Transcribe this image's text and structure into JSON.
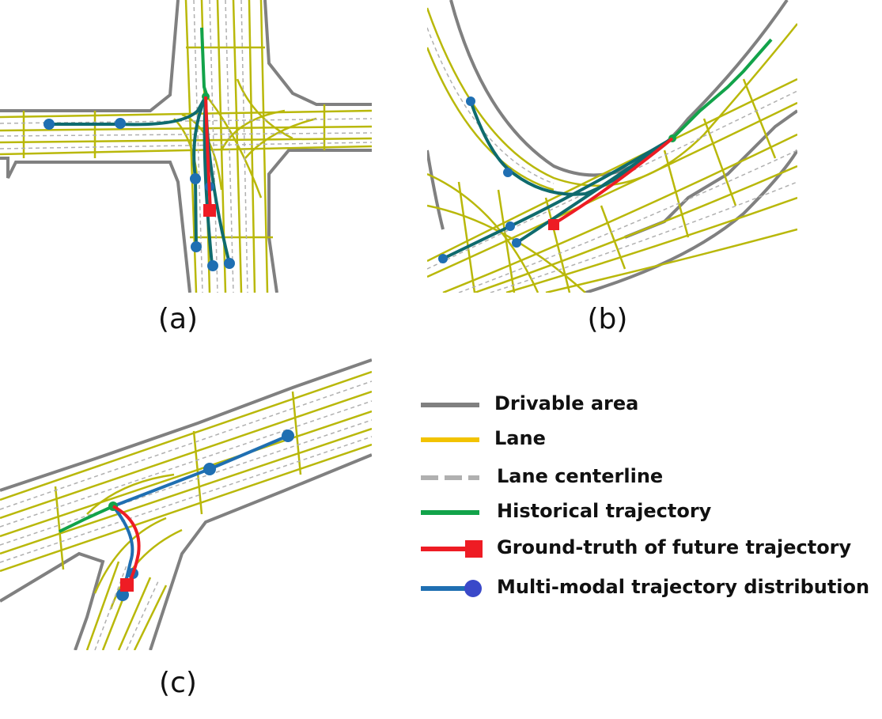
{
  "colors": {
    "drivable_area": "#808080",
    "lane": "#b9b80a",
    "lane_legend": "#f2c300",
    "centerline": "#b0b0b0",
    "historical": "#12a34a",
    "ground_truth": "#ee1c24",
    "multimodal": "#1f6fb2",
    "multimodal_dark": "#0f6b6e",
    "multimodal_legend_dot": "#3a49c9"
  },
  "panels": [
    {
      "id": "a",
      "caption": "(a)"
    },
    {
      "id": "b",
      "caption": "(b)"
    },
    {
      "id": "c",
      "caption": "(c)"
    }
  ],
  "legend": {
    "items": [
      {
        "key": "drivable_area",
        "label": "Drivable area",
        "icon": "gray-line"
      },
      {
        "key": "lane",
        "label": "Lane",
        "icon": "yellow-line"
      },
      {
        "key": "centerline",
        "label": "Lane centerline",
        "icon": "gray-dashed-line"
      },
      {
        "key": "historical",
        "label": "Historical trajectory",
        "icon": "green-line"
      },
      {
        "key": "ground_truth",
        "label": "Ground-truth of future trajectory",
        "icon": "red-line-square"
      },
      {
        "key": "multimodal",
        "label": "Multi-modal trajectory distribution",
        "icon": "blue-line-circle"
      }
    ]
  }
}
